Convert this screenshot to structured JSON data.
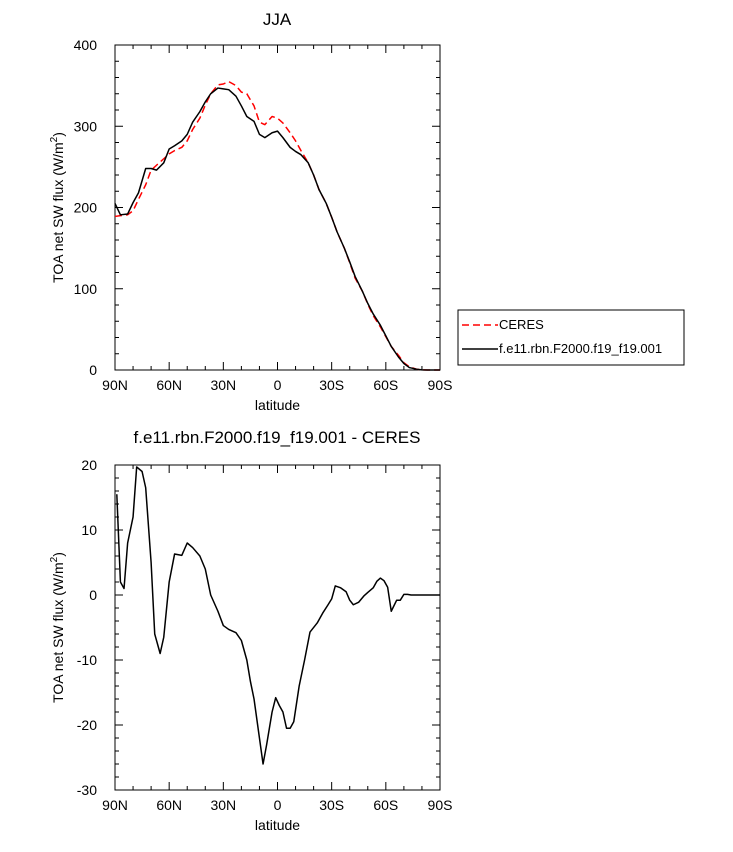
{
  "chart_data": [
    {
      "type": "line",
      "title": "JJA",
      "xlabel": "latitude",
      "ylabel_main": "TOA net SW flux (W/m",
      "ylabel_sup": "2",
      "ylabel_end": ")",
      "xlim": [
        90,
        -90
      ],
      "ylim": [
        0,
        400
      ],
      "x_ticks": [
        90,
        60,
        30,
        0,
        -30,
        -60,
        -90
      ],
      "x_tick_labels": [
        "90N",
        "60N",
        "30N",
        "0",
        "30S",
        "60S",
        "90S"
      ],
      "y_ticks": [
        0,
        100,
        200,
        300,
        400
      ],
      "y_tick_labels": [
        "0",
        "100",
        "200",
        "300",
        "400"
      ],
      "legend": {
        "placement": "right"
      },
      "series": [
        {
          "name": "CERES",
          "color": "#ff0000",
          "style": "dashed",
          "x": [
            90,
            87,
            83,
            80,
            77,
            73,
            70,
            67,
            63,
            60,
            57,
            53,
            50,
            47,
            43,
            40,
            37,
            33,
            30,
            27,
            23,
            20,
            17,
            13,
            10,
            7,
            3,
            0,
            -3,
            -7,
            -10,
            -13,
            -17,
            -20,
            -23,
            -27,
            -30,
            -33,
            -37,
            -40,
            -43,
            -47,
            -50,
            -53,
            -57,
            -60,
            -63,
            -67,
            -70,
            -73,
            -77,
            -80,
            -83,
            -87,
            -90
          ],
          "y": [
            189,
            190,
            191,
            196,
            210,
            228,
            246,
            252,
            260,
            266,
            270,
            274,
            282,
            296,
            310,
            326,
            340,
            351,
            352,
            355,
            350,
            342,
            340,
            325,
            305,
            302,
            312,
            310,
            304,
            292,
            282,
            270,
            255,
            240,
            222,
            205,
            188,
            170,
            150,
            132,
            113,
            97,
            81,
            67,
            53,
            41,
            29,
            18,
            9,
            4,
            1,
            0.2,
            0,
            0,
            0
          ]
        },
        {
          "name": "f.e11.rbn.F2000.f19_f19.001",
          "color": "#000000",
          "style": "solid",
          "x": [
            90,
            87,
            83,
            80,
            77,
            73,
            70,
            67,
            63,
            60,
            57,
            53,
            50,
            47,
            43,
            40,
            37,
            33,
            30,
            27,
            23,
            20,
            17,
            13,
            10,
            7,
            3,
            0,
            -3,
            -7,
            -10,
            -13,
            -17,
            -20,
            -23,
            -27,
            -30,
            -33,
            -37,
            -40,
            -43,
            -47,
            -50,
            -53,
            -57,
            -60,
            -63,
            -67,
            -70,
            -73,
            -77,
            -80,
            -83,
            -87,
            -90
          ],
          "y": [
            205,
            191,
            192,
            206,
            218,
            248,
            248,
            246,
            255,
            272,
            276,
            282,
            290,
            305,
            318,
            330,
            340,
            347,
            346,
            345,
            337,
            325,
            312,
            306,
            290,
            286,
            292,
            294,
            286,
            274,
            269,
            265,
            255,
            240,
            222,
            205,
            188,
            170,
            150,
            133,
            115,
            97,
            82,
            69,
            55,
            42,
            29,
            16,
            8,
            3,
            1,
            0.2,
            0,
            0,
            0
          ]
        }
      ]
    },
    {
      "type": "line",
      "title": "f.e11.rbn.F2000.f19_f19.001 - CERES",
      "xlabel": "latitude",
      "ylabel_main": "TOA net SW flux (W/m",
      "ylabel_sup": "2",
      "ylabel_end": ")",
      "xlim": [
        90,
        -90
      ],
      "ylim": [
        -30,
        20
      ],
      "x_ticks": [
        90,
        60,
        30,
        0,
        -30,
        -60,
        -90
      ],
      "x_tick_labels": [
        "90N",
        "60N",
        "30N",
        "0",
        "30S",
        "60S",
        "90S"
      ],
      "y_ticks": [
        -30,
        -20,
        -10,
        0,
        10,
        20
      ],
      "y_tick_labels": [
        "-30",
        "-20",
        "-10",
        "0",
        "10",
        "20"
      ],
      "series": [
        {
          "color": "#000000",
          "style": "solid",
          "x": [
            89,
            87,
            85,
            83,
            80,
            78,
            75,
            73,
            70,
            68,
            65,
            63,
            60,
            57,
            53,
            50,
            47,
            43,
            40,
            37,
            33,
            30,
            27,
            23,
            20,
            17,
            15,
            13,
            10,
            8,
            6,
            3,
            1,
            -1,
            -3,
            -5,
            -7,
            -9,
            -12,
            -15,
            -18,
            -22,
            -25,
            -28,
            -30,
            -32,
            -35,
            -38,
            -40,
            -42,
            -45,
            -48,
            -50,
            -53,
            -55,
            -57,
            -59,
            -61,
            -63,
            -66,
            -68,
            -70,
            -72,
            -74,
            -77,
            -80,
            -83,
            -87,
            -90
          ],
          "y": [
            15.5,
            2,
            1,
            8,
            12,
            19.7,
            19,
            16.5,
            5,
            -6,
            -9,
            -6.5,
            2,
            6.3,
            6.1,
            8,
            7.3,
            6,
            4,
            0,
            -2.5,
            -4.7,
            -5.3,
            -5.8,
            -7,
            -10,
            -13.3,
            -16,
            -22,
            -26,
            -23,
            -18,
            -15.8,
            -17,
            -18,
            -20.5,
            -20.5,
            -19.5,
            -14,
            -10,
            -5.7,
            -4.3,
            -2.8,
            -1.5,
            -0.6,
            1.4,
            1.1,
            0.5,
            -0.8,
            -1.5,
            -1.1,
            -0.1,
            0.4,
            1.1,
            2.1,
            2.6,
            2.2,
            1.2,
            -2.5,
            -0.8,
            -0.8,
            0.1,
            0.1,
            0,
            0,
            0,
            0,
            0,
            0
          ]
        }
      ]
    }
  ]
}
